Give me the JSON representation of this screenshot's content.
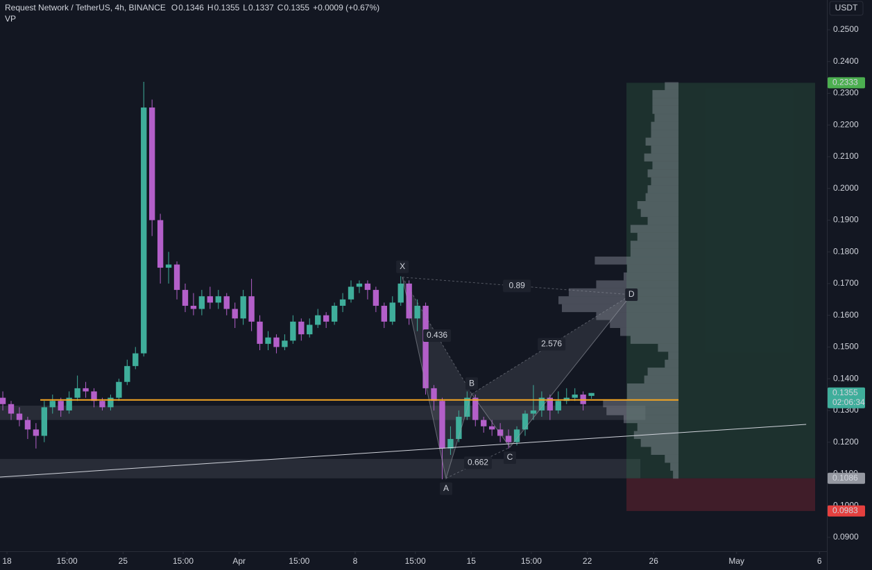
{
  "chart_data": {
    "type": "candlestick",
    "header": {
      "title": "Request Network / TetherUS, 4h, BINANCE",
      "ohlc_labels": [
        "O",
        "H",
        "L",
        "C"
      ],
      "change": "+0.0009 (+0.67%)",
      "indicator": "VP"
    },
    "currency": "USDT",
    "countdown": "02:06:34",
    "xlim": [
      17.58,
      67.45
    ],
    "ylim": [
      0.0856,
      0.2594
    ],
    "xticks": [
      18,
      {
        "value": 21.625,
        "label": "15:00"
      },
      25,
      {
        "value": 28.625,
        "label": "15:00"
      },
      {
        "value": 32,
        "label": "Apr"
      },
      {
        "value": 35.625,
        "label": "15:00"
      },
      {
        "value": 39,
        "label": "8"
      },
      {
        "value": 42.625,
        "label": "15:00"
      },
      {
        "value": 46,
        "label": "15"
      },
      {
        "value": 49.625,
        "label": "15:00"
      },
      {
        "value": 53,
        "label": "22"
      },
      {
        "value": 57,
        "label": "26"
      },
      {
        "value": 62,
        "label": "May"
      },
      {
        "value": 67,
        "label": "6"
      }
    ],
    "yticks": [
      {
        "value": 0.09,
        "label": "0.0900"
      },
      {
        "value": 0.1,
        "label": "0.1000"
      },
      {
        "value": 0.11,
        "label": "0.1100"
      },
      {
        "value": 0.12,
        "label": "0.1200"
      },
      {
        "value": 0.13,
        "label": "0.1300"
      },
      {
        "value": 0.14,
        "label": "0.1400"
      },
      {
        "value": 0.15,
        "label": "0.1500"
      },
      {
        "value": 0.16,
        "label": "0.1600"
      },
      {
        "value": 0.17,
        "label": "0.1700"
      },
      {
        "value": 0.18,
        "label": "0.1800"
      },
      {
        "value": 0.19,
        "label": "0.1900"
      },
      {
        "value": 0.2,
        "label": "0.2000"
      },
      {
        "value": 0.21,
        "label": "0.2100"
      },
      {
        "value": 0.22,
        "label": "0.2200"
      },
      {
        "value": 0.23,
        "label": "0.2300"
      },
      {
        "value": 0.24,
        "label": "0.2400"
      },
      {
        "value": 0.25,
        "label": "0.2500"
      }
    ],
    "up_color": "#3fae9b",
    "down_color": "#b35fc9",
    "candles": {
      "x": [
        17.75,
        18.25,
        18.75,
        19.25,
        19.75,
        20.25,
        20.75,
        21.25,
        21.75,
        22.25,
        22.75,
        23.25,
        23.75,
        24.25,
        24.75,
        25.25,
        25.75,
        26.25,
        26.75,
        27.25,
        27.75,
        28.25,
        28.75,
        29.25,
        29.75,
        30.25,
        30.75,
        31.25,
        31.75,
        32.25,
        32.75,
        33.25,
        33.75,
        34.25,
        34.75,
        35.25,
        35.75,
        36.25,
        36.75,
        37.25,
        37.75,
        38.25,
        38.75,
        39.25,
        39.75,
        40.25,
        40.75,
        41.25,
        41.75,
        42.25,
        42.75,
        43.25,
        43.75,
        44.25,
        44.75,
        45.25,
        45.75,
        46.25,
        46.75,
        47.25,
        47.75,
        48.25,
        48.75,
        49.25,
        49.75,
        50.25,
        50.75,
        51.25,
        51.75,
        52.25,
        52.75,
        53.25
      ],
      "open": [
        0.134,
        0.132,
        0.129,
        0.127,
        0.124,
        0.122,
        0.131,
        0.133,
        0.13,
        0.134,
        0.137,
        0.136,
        0.133,
        0.131,
        0.134,
        0.139,
        0.144,
        0.148,
        0.2255,
        0.19,
        0.175,
        0.176,
        0.168,
        0.163,
        0.162,
        0.166,
        0.164,
        0.166,
        0.162,
        0.159,
        0.166,
        0.158,
        0.151,
        0.153,
        0.15,
        0.152,
        0.158,
        0.154,
        0.157,
        0.16,
        0.158,
        0.163,
        0.165,
        0.169,
        0.17,
        0.168,
        0.163,
        0.158,
        0.164,
        0.17,
        0.159,
        0.163,
        0.137,
        0.133,
        0.118,
        0.121,
        0.128,
        0.134,
        0.127,
        0.125,
        0.124,
        0.122,
        0.12,
        0.124,
        0.129,
        0.13,
        0.134,
        0.13,
        0.133,
        0.134,
        0.135,
        0.1346
      ],
      "high": [
        0.136,
        0.133,
        0.131,
        0.128,
        0.126,
        0.133,
        0.135,
        0.134,
        0.136,
        0.141,
        0.139,
        0.137,
        0.134,
        0.135,
        0.14,
        0.146,
        0.15,
        0.2336,
        0.228,
        0.192,
        0.18,
        0.177,
        0.17,
        0.167,
        0.168,
        0.169,
        0.168,
        0.167,
        0.164,
        0.168,
        0.1715,
        0.16,
        0.155,
        0.154,
        0.154,
        0.16,
        0.159,
        0.159,
        0.162,
        0.161,
        0.164,
        0.167,
        0.171,
        0.171,
        0.171,
        0.169,
        0.164,
        0.166,
        0.1723,
        0.171,
        0.165,
        0.164,
        0.138,
        0.134,
        0.125,
        0.13,
        0.136,
        0.135,
        0.128,
        0.127,
        0.126,
        0.124,
        0.125,
        0.13,
        0.138,
        0.136,
        0.135,
        0.136,
        0.137,
        0.137,
        0.136,
        0.1355
      ],
      "low": [
        0.13,
        0.127,
        0.125,
        0.121,
        0.118,
        0.12,
        0.129,
        0.128,
        0.129,
        0.133,
        0.134,
        0.131,
        0.13,
        0.13,
        0.133,
        0.138,
        0.143,
        0.147,
        0.185,
        0.17,
        0.17,
        0.165,
        0.161,
        0.16,
        0.16,
        0.162,
        0.162,
        0.16,
        0.156,
        0.157,
        0.155,
        0.149,
        0.149,
        0.148,
        0.149,
        0.151,
        0.152,
        0.153,
        0.156,
        0.156,
        0.157,
        0.161,
        0.164,
        0.167,
        0.165,
        0.161,
        0.156,
        0.157,
        0.163,
        0.157,
        0.155,
        0.135,
        0.13,
        0.1083,
        0.116,
        0.12,
        0.127,
        0.125,
        0.123,
        0.122,
        0.12,
        0.118,
        0.119,
        0.122,
        0.127,
        0.128,
        0.127,
        0.129,
        0.132,
        0.133,
        0.13,
        0.1337
      ],
      "close": [
        0.132,
        0.129,
        0.127,
        0.124,
        0.122,
        0.131,
        0.133,
        0.13,
        0.134,
        0.137,
        0.136,
        0.133,
        0.131,
        0.134,
        0.139,
        0.144,
        0.148,
        0.2255,
        0.19,
        0.175,
        0.176,
        0.168,
        0.163,
        0.162,
        0.166,
        0.164,
        0.166,
        0.162,
        0.159,
        0.166,
        0.158,
        0.151,
        0.153,
        0.15,
        0.152,
        0.158,
        0.154,
        0.157,
        0.16,
        0.158,
        0.163,
        0.165,
        0.169,
        0.17,
        0.168,
        0.163,
        0.158,
        0.164,
        0.17,
        0.159,
        0.163,
        0.137,
        0.133,
        0.118,
        0.121,
        0.128,
        0.134,
        0.127,
        0.125,
        0.124,
        0.122,
        0.12,
        0.124,
        0.129,
        0.13,
        0.134,
        0.13,
        0.133,
        0.134,
        0.135,
        0.132,
        0.1355
      ]
    },
    "position": {
      "x": [
        55.36,
        66.74
      ],
      "entry": 0.1086,
      "target": 0.2333,
      "stop": 0.0983,
      "target_color": "#4caf50",
      "stop_color": "#e5403f",
      "entry_color": "#9598a1"
    },
    "horizontal_line": {
      "x": [
        20.01,
        58.5
      ],
      "y": 0.1333,
      "color": "#f5a623"
    },
    "trend_line": {
      "x": [
        17.58,
        66.2
      ],
      "y": [
        0.109,
        0.1256
      ],
      "color": "#d1d4dc"
    },
    "zones": [
      {
        "x": [
          17.58,
          56.5
        ],
        "y": [
          0.127,
          0.1315
        ]
      },
      {
        "x": [
          17.58,
          56.2
        ],
        "y": [
          0.1086,
          0.1147
        ]
      }
    ],
    "pattern": {
      "points": [
        {
          "label": "X",
          "x": 41.85,
          "y": 0.172
        },
        {
          "label": "A",
          "x": 44.48,
          "y": 0.1086
        },
        {
          "label": "B",
          "x": 46.03,
          "y": 0.1352
        },
        {
          "label": "C",
          "x": 48.33,
          "y": 0.1184
        },
        {
          "label": "D",
          "x": 55.66,
          "y": 0.1665
        }
      ],
      "ratios": [
        0.436,
        0.89,
        0.662,
        2.576
      ]
    },
    "volume_profile": {
      "x": 58.5,
      "volume_lim": [
        0,
        180
      ],
      "bins": [
        0.1085,
        0.111,
        0.1135,
        0.116,
        0.1185,
        0.121,
        0.1235,
        0.126,
        0.1285,
        0.131,
        0.1335,
        0.136,
        0.1385,
        0.141,
        0.1435,
        0.146,
        0.1485,
        0.151,
        0.1535,
        0.156,
        0.1585,
        0.161,
        0.1635,
        0.166,
        0.1685,
        0.171,
        0.1735,
        0.176,
        0.1785,
        0.181,
        0.1835,
        0.186,
        0.1885,
        0.191,
        0.1935,
        0.196,
        0.1985,
        0.201,
        0.2035,
        0.206,
        0.2085,
        0.211,
        0.2135,
        0.216,
        0.2185,
        0.221,
        0.2235,
        0.226,
        0.2285,
        0.231,
        0.2335
      ],
      "volumes": [
        8,
        12,
        20,
        40,
        55,
        65,
        60,
        80,
        105,
        110,
        75,
        75,
        50,
        45,
        20,
        15,
        30,
        70,
        85,
        100,
        120,
        170,
        175,
        160,
        120,
        80,
        75,
        122,
        70,
        70,
        60,
        70,
        45,
        55,
        60,
        48,
        45,
        40,
        45,
        38,
        50,
        40,
        48,
        40,
        40,
        35,
        38,
        38,
        38,
        20
      ]
    }
  }
}
